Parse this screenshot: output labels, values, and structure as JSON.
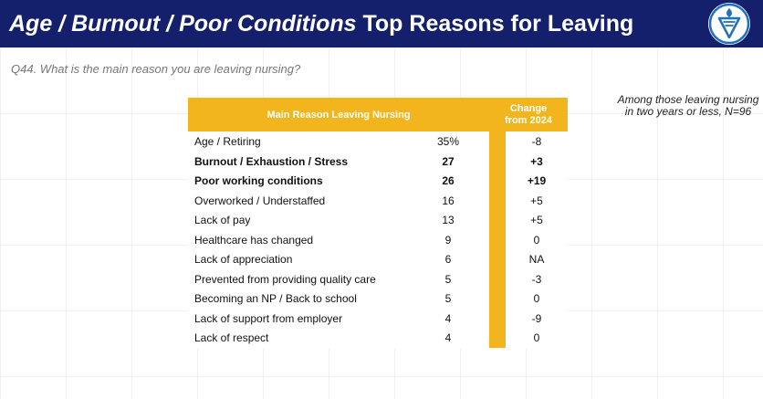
{
  "header": {
    "title_italic": "Age / Burnout / Poor Conditions",
    "title_plain": "Top Reasons for Leaving",
    "logo_icon": "torch-shield-logo"
  },
  "question": "Q44. What is the main reason you are leaving nursing?",
  "note": "Among those leaving nursing in two years or less, N=96",
  "table": {
    "header_main": "Main Reason Leaving Nursing",
    "header_change": "Change from 2024",
    "rows": [
      {
        "label": "Age / Retiring",
        "value": "35%",
        "change": "-8",
        "bold": false
      },
      {
        "label": "Burnout / Exhaustion / Stress",
        "value": "27",
        "change": "+3",
        "bold": true
      },
      {
        "label": "Poor working conditions",
        "value": "26",
        "change": "+19",
        "bold": true
      },
      {
        "label": "Overworked / Understaffed",
        "value": "16",
        "change": "+5",
        "bold": false
      },
      {
        "label": "Lack of pay",
        "value": "13",
        "change": "+5",
        "bold": false
      },
      {
        "label": "Healthcare has changed",
        "value": "9",
        "change": "0",
        "bold": false
      },
      {
        "label": "Lack of appreciation",
        "value": "6",
        "change": "NA",
        "bold": false
      },
      {
        "label": "Prevented from providing quality care",
        "value": "5",
        "change": "-3",
        "bold": false
      },
      {
        "label": "Becoming an NP / Back to school",
        "value": "5",
        "change": "0",
        "bold": false
      },
      {
        "label": "Lack of support from employer",
        "value": "4",
        "change": "-9",
        "bold": false
      },
      {
        "label": "Lack of respect",
        "value": "4",
        "change": "0",
        "bold": false
      }
    ]
  },
  "colors": {
    "title_bar": "#14206b",
    "accent": "#f2b51d",
    "logo_blue": "#1f6fc2"
  }
}
